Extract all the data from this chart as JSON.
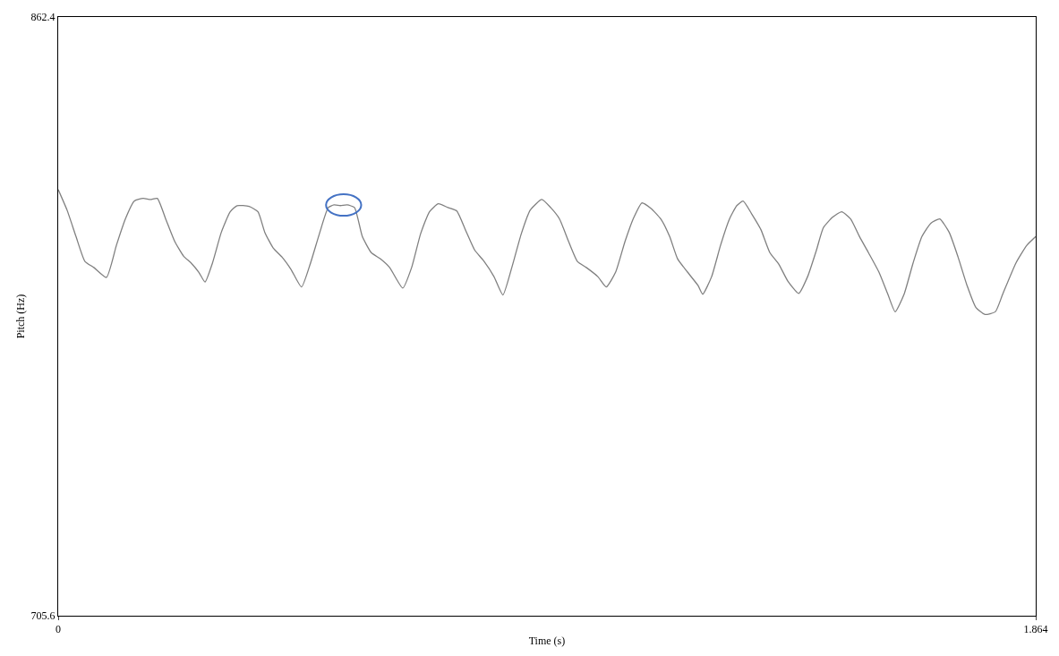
{
  "chart_data": {
    "type": "line",
    "xlabel": "Time (s)",
    "ylabel": "Pitch (Hz)",
    "xlim": [
      0,
      1.864
    ],
    "xticks": [
      0,
      1.864
    ],
    "ylim": [
      705.6,
      862.4
    ],
    "yticks": [
      705.6,
      862.4
    ],
    "line_style": "solid",
    "series": [
      {
        "color": "#808080",
        "x": [
          0,
          0.017,
          0.034,
          0.051,
          0.068,
          0.092,
          0.111,
          0.128,
          0.145,
          0.162,
          0.176,
          0.189,
          0.205,
          0.222,
          0.239,
          0.254,
          0.268,
          0.28,
          0.294,
          0.311,
          0.328,
          0.341,
          0.364,
          0.381,
          0.394,
          0.41,
          0.427,
          0.444,
          0.464,
          0.481,
          0.498,
          0.515,
          0.526,
          0.538,
          0.551,
          0.565,
          0.58,
          0.597,
          0.614,
          0.632,
          0.657,
          0.674,
          0.691,
          0.708,
          0.725,
          0.743,
          0.76,
          0.777,
          0.794,
          0.811,
          0.831,
          0.848,
          0.865,
          0.883,
          0.9,
          0.922,
          0.939,
          0.956,
          0.973,
          0.99,
          1.007,
          1.029,
          1.045,
          1.063,
          1.081,
          1.098,
          1.113,
          1.13,
          1.149,
          1.166,
          1.181,
          1.2,
          1.22,
          1.229,
          1.246,
          1.263,
          1.28,
          1.294,
          1.306,
          1.323,
          1.34,
          1.357,
          1.374,
          1.391,
          1.412,
          1.429,
          1.446,
          1.459,
          1.477,
          1.494,
          1.511,
          1.528,
          1.545,
          1.565,
          1.582,
          1.596,
          1.613,
          1.63,
          1.647,
          1.664,
          1.681,
          1.699,
          1.716,
          1.733,
          1.75,
          1.767,
          1.787,
          1.801,
          1.826,
          1.847,
          1.864
        ],
        "values": [
          817.2,
          811.8,
          804.9,
          798.4,
          796.8,
          794.2,
          802.6,
          809.5,
          814.2,
          814.9,
          814.6,
          814.9,
          809.5,
          803.7,
          799.8,
          797.9,
          795.6,
          793.0,
          797.9,
          806.0,
          811.4,
          813.0,
          812.8,
          811.4,
          806.0,
          801.9,
          799.5,
          796.3,
          791.7,
          797.9,
          805.6,
          812.5,
          813.2,
          813.0,
          813.2,
          812.5,
          804.9,
          800.7,
          799.1,
          796.8,
          791.4,
          796.8,
          805.6,
          811.4,
          813.5,
          812.5,
          811.6,
          806.5,
          801.4,
          798.6,
          794.4,
          789.6,
          796.8,
          805.6,
          811.8,
          814.6,
          812.5,
          809.5,
          803.7,
          798.4,
          796.8,
          794.4,
          791.7,
          795.6,
          803.7,
          810.0,
          813.7,
          812.3,
          809.5,
          804.9,
          799.1,
          795.6,
          792.1,
          789.8,
          794.4,
          802.6,
          809.5,
          813.0,
          814.2,
          810.7,
          806.7,
          800.7,
          797.7,
          793.3,
          790.0,
          794.4,
          801.4,
          807.2,
          810.0,
          811.4,
          809.5,
          804.9,
          800.7,
          795.6,
          789.8,
          785.2,
          789.8,
          797.9,
          804.9,
          808.4,
          809.5,
          806.0,
          799.5,
          792.1,
          786.3,
          784.5,
          785.2,
          789.8,
          797.9,
          802.6,
          804.9
        ]
      }
    ]
  }
}
